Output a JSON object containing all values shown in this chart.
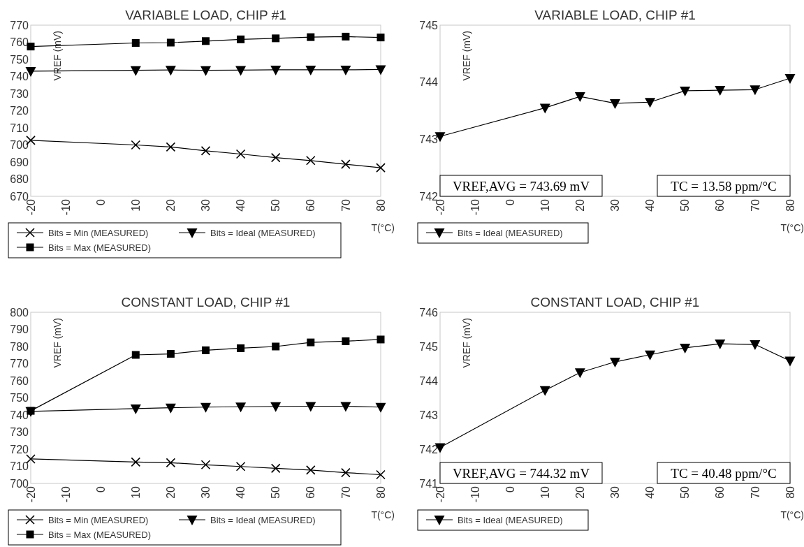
{
  "chart_data": [
    {
      "type": "line",
      "title": "VARIABLE LOAD, CHIP #1",
      "xlabel": "T(°C)",
      "ylabel": "VREF (mV)",
      "x": [
        -20,
        10,
        20,
        30,
        40,
        50,
        60,
        70,
        80
      ],
      "xlim": [
        -20,
        80
      ],
      "xticks": [
        -20,
        -10,
        0,
        10,
        20,
        30,
        40,
        50,
        60,
        70,
        80
      ],
      "ylim": [
        670,
        770
      ],
      "yticks": [
        670,
        680,
        690,
        700,
        710,
        720,
        730,
        740,
        750,
        760,
        770
      ],
      "grid": false,
      "legend": "bottom",
      "series": [
        {
          "name": "Bits = Min (MEASURED)",
          "color": "#000000",
          "marker": "cross",
          "values": [
            702.7,
            700.0,
            698.8,
            696.6,
            694.7,
            692.6,
            690.9,
            688.7,
            686.7
          ]
        },
        {
          "name": "Bits = Ideal (MEASURED)",
          "color": "#000000",
          "marker": "triangle",
          "values": [
            743.1,
            743.6,
            743.8,
            743.6,
            743.7,
            743.9,
            743.9,
            743.9,
            744.1
          ]
        },
        {
          "name": "Bits = Max (MEASURED)",
          "color": "#000000",
          "marker": "square",
          "values": [
            757.5,
            759.6,
            759.8,
            760.7,
            761.7,
            762.3,
            763.0,
            763.3,
            762.8
          ]
        }
      ]
    },
    {
      "type": "line",
      "title": "VARIABLE LOAD, CHIP #1",
      "xlabel": "T(°C)",
      "ylabel": "VREF (mV)",
      "x": [
        -20,
        10,
        20,
        30,
        40,
        50,
        60,
        70,
        80
      ],
      "xlim": [
        -20,
        80
      ],
      "xticks": [
        -20,
        -10,
        0,
        10,
        20,
        30,
        40,
        50,
        60,
        70,
        80
      ],
      "ylim": [
        742,
        745
      ],
      "yticks": [
        742,
        743,
        744,
        745
      ],
      "grid": false,
      "legend": "bottom",
      "annotations": [
        "VREF,AVG = 743.69 mV",
        "TC = 13.58 ppm/°C"
      ],
      "series": [
        {
          "name": "Bits = Ideal (MEASURED)",
          "color": "#000000",
          "marker": "triangle",
          "values": [
            743.05,
            743.55,
            743.75,
            743.63,
            743.65,
            743.85,
            743.86,
            743.87,
            744.07
          ]
        }
      ]
    },
    {
      "type": "line",
      "title": "CONSTANT LOAD, CHIP #1",
      "xlabel": "T(°C)",
      "ylabel": "VREF (mV)",
      "x": [
        -20,
        10,
        20,
        30,
        40,
        50,
        60,
        70,
        80
      ],
      "xlim": [
        -20,
        80
      ],
      "xticks": [
        -20,
        -10,
        0,
        10,
        20,
        30,
        40,
        50,
        60,
        70,
        80
      ],
      "ylim": [
        700,
        800
      ],
      "yticks": [
        700,
        710,
        720,
        730,
        740,
        750,
        760,
        770,
        780,
        790,
        800
      ],
      "grid": false,
      "legend": "bottom",
      "series": [
        {
          "name": "Bits = Min (MEASURED)",
          "color": "#000000",
          "marker": "cross",
          "values": [
            714.3,
            712.5,
            712.1,
            710.9,
            709.9,
            708.8,
            707.8,
            706.3,
            705.1
          ]
        },
        {
          "name": "Bits = Ideal (MEASURED)",
          "color": "#000000",
          "marker": "triangle",
          "values": [
            742.1,
            743.7,
            744.2,
            744.6,
            744.8,
            745.0,
            745.1,
            745.1,
            744.6
          ]
        },
        {
          "name": "Bits = Max (MEASURED)",
          "color": "#000000",
          "marker": "square",
          "values": [
            742.4,
            775.1,
            775.7,
            777.8,
            779.0,
            780.0,
            782.4,
            783.1,
            784.1
          ]
        }
      ]
    },
    {
      "type": "line",
      "title": "CONSTANT LOAD, CHIP #1",
      "xlabel": "T(°C)",
      "ylabel": "VREF (mV)",
      "x": [
        -20,
        10,
        20,
        30,
        40,
        50,
        60,
        70,
        80
      ],
      "xlim": [
        -20,
        80
      ],
      "xticks": [
        -20,
        -10,
        0,
        10,
        20,
        30,
        40,
        50,
        60,
        70,
        80
      ],
      "ylim": [
        741,
        746
      ],
      "yticks": [
        741,
        742,
        743,
        744,
        745,
        746
      ],
      "grid": false,
      "legend": "bottom",
      "annotations": [
        "VREF,AVG = 744.32 mV",
        "TC = 40.48 ppm/°C"
      ],
      "series": [
        {
          "name": "Bits = Ideal (MEASURED)",
          "color": "#000000",
          "marker": "triangle",
          "values": [
            742.05,
            743.72,
            744.24,
            744.55,
            744.76,
            744.96,
            745.08,
            745.06,
            744.58
          ]
        }
      ]
    }
  ]
}
